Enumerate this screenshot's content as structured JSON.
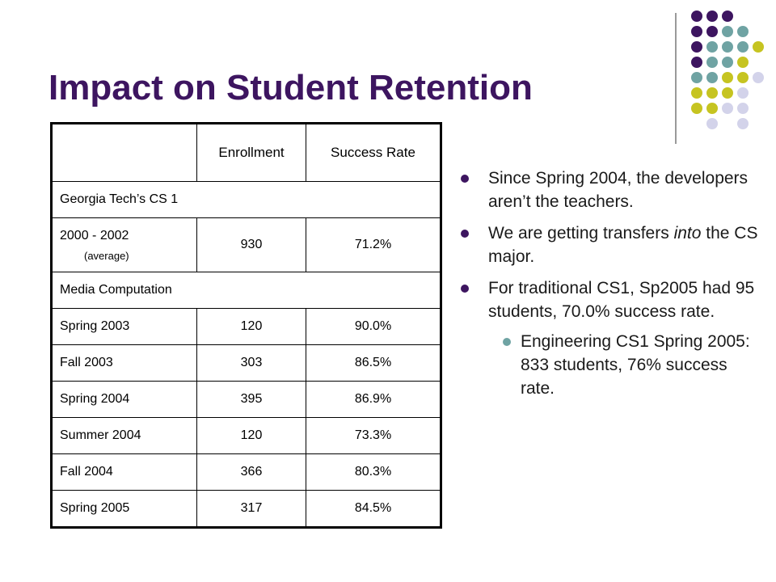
{
  "slide": {
    "title": "Impact on Student Retention"
  },
  "colors": {
    "purple": "#3d1560",
    "teal": "#6fa3a3",
    "olive": "#c6c421",
    "lavender": "#d3d3ea"
  },
  "table": {
    "headers": [
      "",
      "Enrollment",
      "Success Rate"
    ],
    "section1": "Georgia Tech’s CS 1",
    "avg_row": {
      "name": "2000 - 2002",
      "note": "(average)",
      "enrollment": "930",
      "success": "71.2%"
    },
    "section2": "Media Computation",
    "rows": [
      {
        "name": "Spring 2003",
        "enrollment": "120",
        "success": "90.0%"
      },
      {
        "name": "Fall 2003",
        "enrollment": "303",
        "success": "86.5%"
      },
      {
        "name": "Spring 2004",
        "enrollment": "395",
        "success": "86.9%"
      },
      {
        "name": "Summer 2004",
        "enrollment": "120",
        "success": "73.3%"
      },
      {
        "name": "Fall 2004",
        "enrollment": "366",
        "success": "80.3%"
      },
      {
        "name": "Spring 2005",
        "enrollment": "317",
        "success": "84.5%"
      }
    ]
  },
  "bullets": {
    "b1": "Since Spring 2004, the developers aren’t the teachers.",
    "b2_pre": "We are getting transfers ",
    "b2_em": "into",
    "b2_post": " the CS major.",
    "b3": "For traditional CS1, Sp2005 had 95 students, 70.0% success rate.",
    "b3_sub": "Engineering CS1 Spring 2005: 833 students, 76% success rate."
  }
}
